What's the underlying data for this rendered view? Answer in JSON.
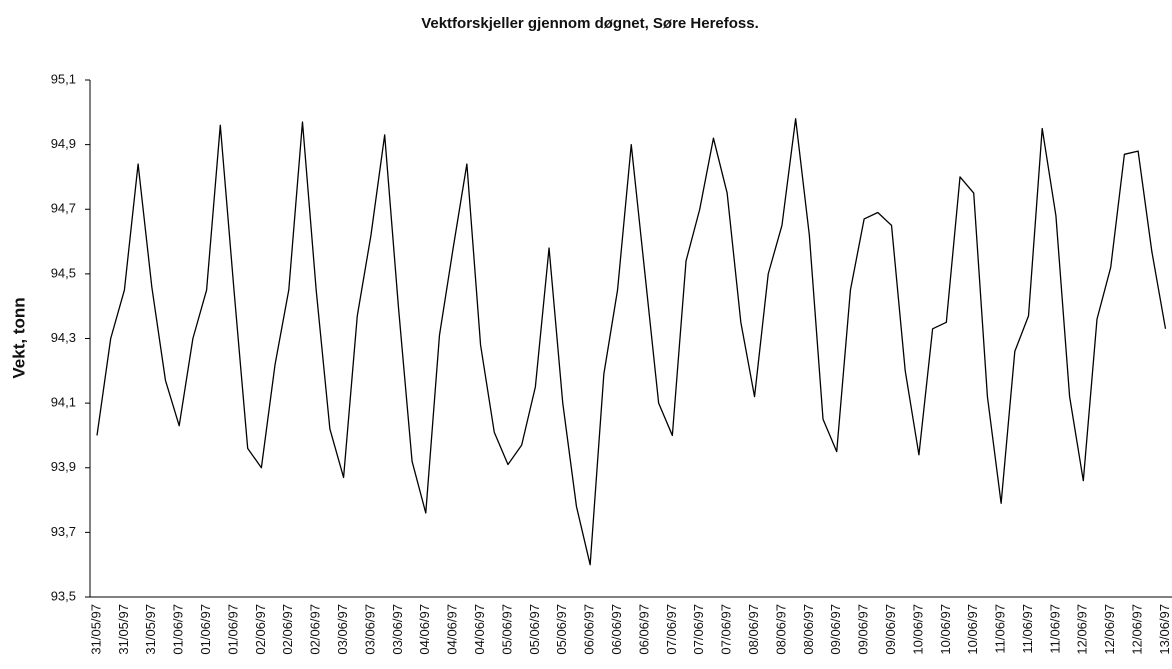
{
  "chart_data": {
    "type": "line",
    "title": "Vektforskjeller gjennom døgnet, Søre Herefoss.",
    "y_label": "Vekt, tonn",
    "categories": [
      "31/05/97",
      null,
      "31/05/97",
      null,
      "31/05/97",
      null,
      "01/06/97",
      null,
      "01/06/97",
      null,
      "01/06/97",
      null,
      "02/06/97",
      null,
      "02/06/97",
      null,
      "02/06/97",
      null,
      "03/06/97",
      null,
      "03/06/97",
      null,
      "03/06/97",
      null,
      "04/06/97",
      null,
      "04/06/97",
      null,
      "04/06/97",
      null,
      "05/06/97",
      null,
      "05/06/97",
      null,
      "05/06/97",
      null,
      "06/06/97",
      null,
      "06/06/97",
      null,
      "06/06/97",
      null,
      "07/06/97",
      null,
      "07/06/97",
      null,
      "07/06/97",
      null,
      "08/06/97",
      null,
      "08/06/97",
      null,
      "08/06/97",
      null,
      "09/06/97",
      null,
      "09/06/97",
      null,
      "09/06/97",
      null,
      "10/06/97",
      null,
      "10/06/97",
      null,
      "10/06/97",
      null,
      "11/06/97",
      null,
      "11/06/97",
      null,
      "11/06/97",
      null,
      "12/06/97",
      null,
      "12/06/97",
      null,
      "12/06/97",
      null,
      "13/06/97"
    ],
    "values": [
      94.0,
      94.3,
      94.45,
      94.84,
      94.46,
      94.17,
      94.03,
      94.3,
      94.45,
      94.96,
      94.45,
      93.96,
      93.9,
      94.22,
      94.45,
      94.97,
      94.45,
      94.02,
      93.87,
      94.37,
      94.62,
      94.93,
      94.4,
      93.92,
      93.76,
      94.31,
      94.58,
      94.84,
      94.28,
      94.01,
      93.91,
      93.97,
      94.15,
      94.58,
      94.1,
      93.78,
      93.6,
      94.19,
      94.45,
      94.9,
      94.5,
      94.1,
      94.0,
      94.54,
      94.7,
      94.92,
      94.75,
      94.35,
      94.12,
      94.5,
      94.65,
      94.98,
      94.62,
      94.05,
      93.95,
      94.45,
      94.67,
      94.69,
      94.65,
      94.2,
      93.94,
      94.33,
      94.35,
      94.8,
      94.75,
      94.12,
      93.79,
      94.26,
      94.37,
      94.95,
      94.68,
      94.12,
      93.86,
      94.36,
      94.52,
      94.87,
      94.88,
      94.57,
      94.33
    ],
    "color": "#000000",
    "ylim": [
      93.5,
      95.1
    ],
    "yticks": [
      {
        "value": 93.5,
        "label": "93,5"
      },
      {
        "value": 93.7,
        "label": "93,7"
      },
      {
        "value": 93.9,
        "label": "93,9"
      },
      {
        "value": 94.1,
        "label": "94,1"
      },
      {
        "value": 94.3,
        "label": "94,3"
      },
      {
        "value": 94.5,
        "label": "94,5"
      },
      {
        "value": 94.7,
        "label": "94,7"
      },
      {
        "value": 94.9,
        "label": "94,9"
      },
      {
        "value": 95.1,
        "label": "95,1"
      }
    ],
    "grid": false
  }
}
